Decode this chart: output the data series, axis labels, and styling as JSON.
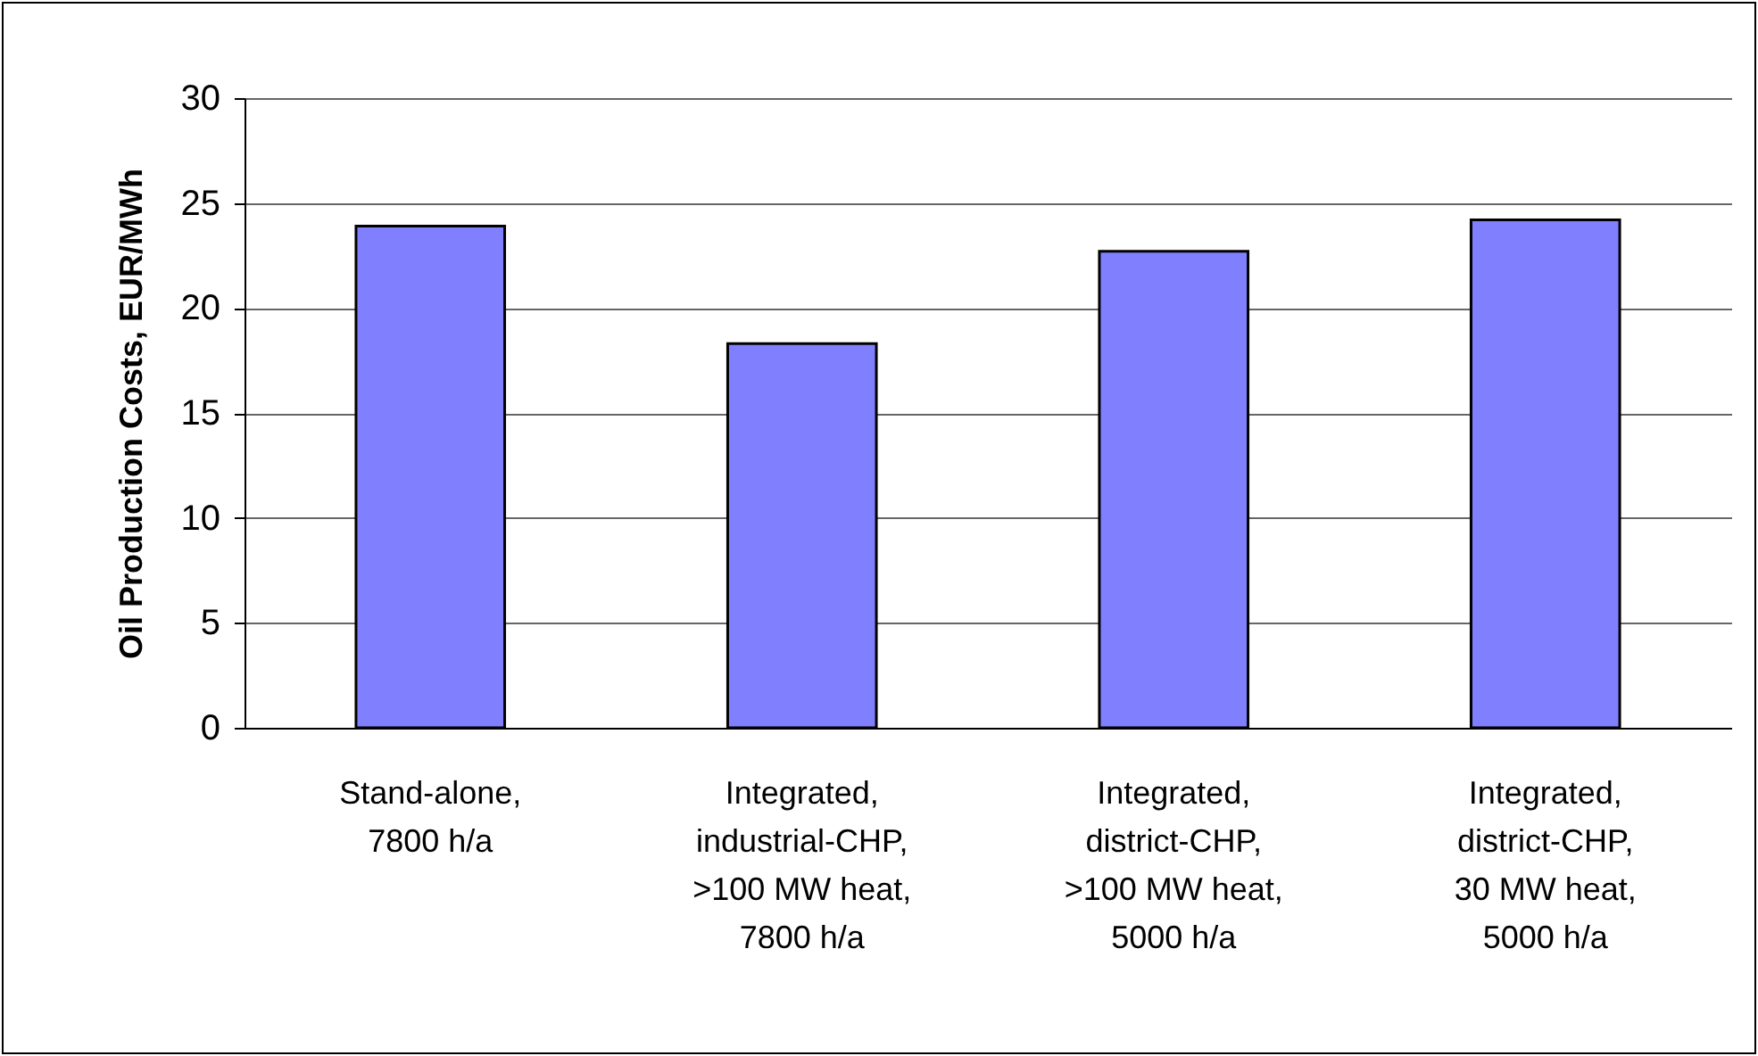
{
  "chart_data": {
    "type": "bar",
    "ylabel": "Oil Production Costs, EUR/MWh",
    "categories": [
      "Stand-alone,\n7800 h/a",
      "Integrated,\nindustrial-CHP,\n>100 MW heat,\n7800 h/a",
      "Integrated,\ndistrict-CHP,\n>100 MW heat,\n5000 h/a",
      "Integrated,\ndistrict-CHP,\n30 MW heat,\n5000 h/a"
    ],
    "values": [
      23.9,
      18.3,
      22.7,
      24.2
    ],
    "color": "#8080ff",
    "ylim": [
      0,
      30
    ],
    "yticks": [
      0,
      5,
      10,
      15,
      20,
      25,
      30
    ],
    "grid": "y"
  }
}
